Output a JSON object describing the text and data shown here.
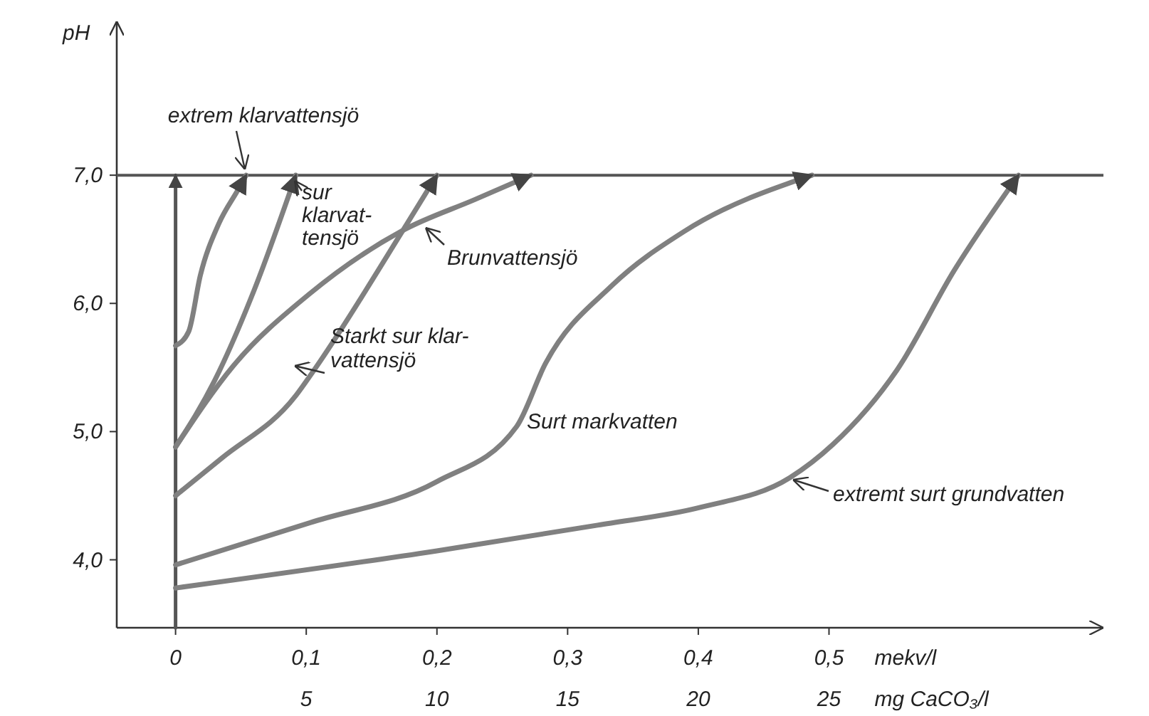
{
  "chart_data": {
    "type": "line",
    "ylabel": "pH",
    "xlabel": "mekv/l",
    "x2label": "mg CaCO₃/l",
    "xlim": [
      -0.045,
      0.71
    ],
    "xticks": [
      {
        "value": 0,
        "label": "0"
      },
      {
        "value": 0.1,
        "label": "0,1"
      },
      {
        "value": 0.2,
        "label": "0,2"
      },
      {
        "value": 0.3,
        "label": "0,3"
      },
      {
        "value": 0.4,
        "label": "0,4"
      },
      {
        "value": 0.5,
        "label": "0,5"
      }
    ],
    "x2lim": [
      -2.25,
      35.5
    ],
    "x2ticks": [
      5,
      10,
      15,
      20,
      25
    ],
    "ylim": [
      3.47,
      8.2
    ],
    "yticks": [
      {
        "value": 4,
        "label": "4,0"
      },
      {
        "value": 5,
        "label": "5,0"
      },
      {
        "value": 6,
        "label": "6,0"
      },
      {
        "value": 7,
        "label": "7,0"
      }
    ],
    "grid": false,
    "marker": "none",
    "line_style": "solid",
    "ref_lines": [
      {
        "axis": "y",
        "value": 7,
        "color": "#555555"
      }
    ],
    "series": [
      {
        "color": "#555555",
        "x": [
          0,
          0
        ],
        "values": [
          3.47,
          7.0
        ]
      },
      {
        "name": "extrem klarvattensjö",
        "color": "#808080",
        "x": [
          0,
          0.01,
          0.019,
          0.033,
          0.048,
          0.054
        ],
        "values": [
          5.67,
          5.78,
          6.22,
          6.62,
          6.89,
          7.0
        ]
      },
      {
        "name": "sur\nklarvat-\ntensjö",
        "color": "#808080",
        "x": [
          0,
          0.03,
          0.06,
          0.092
        ],
        "values": [
          4.88,
          5.4,
          6.1,
          7.0
        ]
      },
      {
        "name": "Brunvattensjö",
        "color": "#808080",
        "x": [
          0,
          0.044,
          0.102,
          0.174,
          0.229,
          0.272
        ],
        "values": [
          4.88,
          5.51,
          6.07,
          6.57,
          6.81,
          7.0
        ]
      },
      {
        "name": "Starkt sur klar-\nvattensjö",
        "color": "#808080",
        "x": [
          0,
          0.035,
          0.092,
          0.106,
          0.174,
          0.2
        ],
        "values": [
          4.5,
          4.79,
          5.28,
          5.48,
          6.57,
          7.0
        ]
      },
      {
        "name": "Surt markvatten",
        "color": "#808080",
        "x": [
          0,
          0.103,
          0.2,
          0.261,
          0.283,
          0.334,
          0.389,
          0.487
        ],
        "values": [
          3.96,
          4.29,
          4.61,
          5.04,
          5.53,
          6.14,
          6.56,
          7.0
        ]
      },
      {
        "name": "extremt surt grundvatten",
        "color": "#808080",
        "x": [
          0,
          0.2,
          0.323,
          0.402,
          0.47,
          0.503,
          0.552,
          0.596,
          0.645
        ],
        "values": [
          3.78,
          4.07,
          4.27,
          4.41,
          4.64,
          4.9,
          5.48,
          6.26,
          7.0
        ]
      }
    ]
  }
}
